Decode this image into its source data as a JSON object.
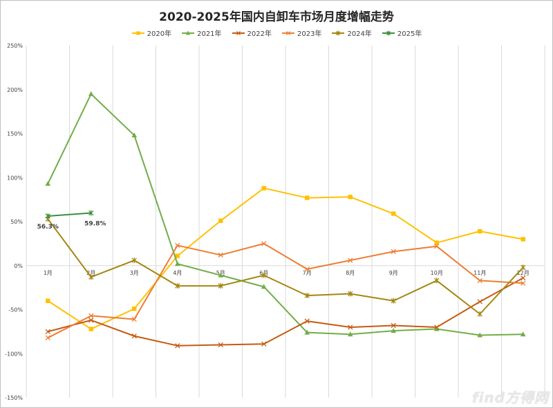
{
  "chart_data": {
    "type": "line",
    "title": "2020-2025年国内自卸车市场月度增幅走势",
    "categories": [
      "1月",
      "2月",
      "3月",
      "4月",
      "5月",
      "6月",
      "7月",
      "8月",
      "9月",
      "10月",
      "11月",
      "12月"
    ],
    "y_ticks": [
      "250%",
      "200%",
      "150%",
      "100%",
      "50%",
      "0%",
      "-50%",
      "-100%",
      "-150%"
    ],
    "ylim": [
      -150,
      250
    ],
    "y_unit": "%",
    "grid": "vertical",
    "legend_position": "top",
    "series": [
      {
        "name": "2020年",
        "color": "#FFC000",
        "marker": "square",
        "values": [
          -40,
          -72,
          -49,
          11,
          51,
          88,
          77,
          78,
          59,
          26,
          39,
          30
        ]
      },
      {
        "name": "2021年",
        "color": "#70AD47",
        "marker": "triangle",
        "values": [
          93,
          195,
          148,
          2,
          -11,
          -24,
          -76,
          -78,
          -74,
          -72,
          -79,
          -78
        ]
      },
      {
        "name": "2022年",
        "color": "#C55A11",
        "marker": "x",
        "values": [
          -75,
          -62,
          -80,
          -91,
          -90,
          -89,
          -63,
          -70,
          -68,
          -70,
          -41,
          -14
        ]
      },
      {
        "name": "2023年",
        "color": "#ED7D31",
        "marker": "x",
        "values": [
          -82,
          -57,
          -61,
          23,
          12,
          25,
          -4,
          6,
          16,
          22,
          -17,
          -20
        ]
      },
      {
        "name": "2024年",
        "color": "#A5850F",
        "marker": "asterisk",
        "values": [
          53,
          -13,
          6,
          -23,
          -23,
          -11,
          -34,
          -32,
          -40,
          -17,
          -55,
          -2
        ]
      },
      {
        "name": "2025年",
        "color": "#3A8F3A",
        "marker": "asterisk",
        "values": [
          56.3,
          59.8,
          null,
          null,
          null,
          null,
          null,
          null,
          null,
          null,
          null,
          null
        ],
        "data_labels": [
          "56.3%",
          "59.8%"
        ]
      }
    ]
  },
  "watermark": "find方得网"
}
